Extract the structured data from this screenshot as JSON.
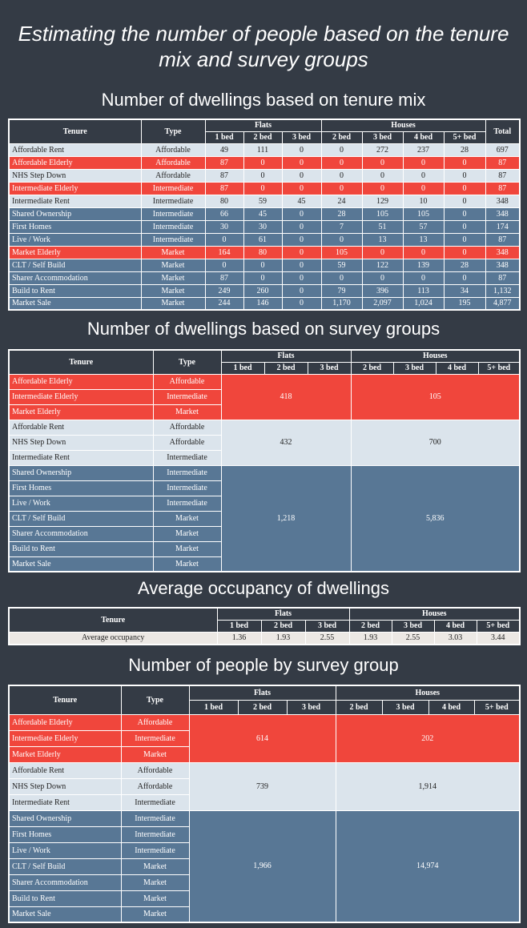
{
  "title": "Estimating the number of people based on the tenure mix and survey groups",
  "tables": [
    {
      "heading": "Number of dwellings based on tenure mix",
      "header": {
        "tenure": "Tenure",
        "type": "Type",
        "flats": "Flats",
        "houses": "Houses",
        "flat_beds": [
          "1 bed",
          "2 bed",
          "3 bed"
        ],
        "house_beds": [
          "2 bed",
          "3 bed",
          "4 bed",
          "5+ bed"
        ],
        "total": "Total"
      },
      "rows": [
        {
          "tenure": "Affordable Rent",
          "type": "Affordable",
          "color": "#dbe4ec",
          "values": [
            "49",
            "111",
            "0",
            "0",
            "272",
            "237",
            "28",
            "697"
          ]
        },
        {
          "tenure": "Affordable Elderly",
          "type": "Affordable",
          "color": "#f0463c",
          "values": [
            "87",
            "0",
            "0",
            "0",
            "0",
            "0",
            "0",
            "87"
          ]
        },
        {
          "tenure": "NHS Step Down",
          "type": "Affordable",
          "color": "#dbe4ec",
          "values": [
            "87",
            "0",
            "0",
            "0",
            "0",
            "0",
            "0",
            "87"
          ]
        },
        {
          "tenure": "Intermediate Elderly",
          "type": "Intermediate",
          "color": "#f0463c",
          "values": [
            "87",
            "0",
            "0",
            "0",
            "0",
            "0",
            "0",
            "87"
          ]
        },
        {
          "tenure": "Intermediate Rent",
          "type": "Intermediate",
          "color": "#dbe4ec",
          "values": [
            "80",
            "59",
            "45",
            "24",
            "129",
            "10",
            "0",
            "348"
          ]
        },
        {
          "tenure": "Shared Ownership",
          "type": "Intermediate",
          "color": "#587795",
          "values": [
            "66",
            "45",
            "0",
            "28",
            "105",
            "105",
            "0",
            "348"
          ]
        },
        {
          "tenure": "First Homes",
          "type": "Intermediate",
          "color": "#587795",
          "values": [
            "30",
            "30",
            "0",
            "7",
            "51",
            "57",
            "0",
            "174"
          ]
        },
        {
          "tenure": "Live / Work",
          "type": "Intermediate",
          "color": "#587795",
          "values": [
            "0",
            "61",
            "0",
            "0",
            "13",
            "13",
            "0",
            "87"
          ]
        },
        {
          "tenure": "Market Elderly",
          "type": "Market",
          "color": "#f0463c",
          "values": [
            "164",
            "80",
            "0",
            "105",
            "0",
            "0",
            "0",
            "348"
          ]
        },
        {
          "tenure": "CLT / Self Build",
          "type": "Market",
          "color": "#587795",
          "values": [
            "0",
            "0",
            "0",
            "59",
            "122",
            "139",
            "28",
            "348"
          ]
        },
        {
          "tenure": "Sharer Accommodation",
          "type": "Market",
          "color": "#587795",
          "values": [
            "87",
            "0",
            "0",
            "0",
            "0",
            "0",
            "0",
            "87"
          ]
        },
        {
          "tenure": "Build to Rent",
          "type": "Market",
          "color": "#587795",
          "values": [
            "249",
            "260",
            "0",
            "79",
            "396",
            "113",
            "34",
            "1,132"
          ]
        },
        {
          "tenure": "Market Sale",
          "type": "Market",
          "color": "#587795",
          "values": [
            "244",
            "146",
            "0",
            "1,170",
            "2,097",
            "1,024",
            "195",
            "4,877"
          ]
        }
      ]
    },
    {
      "heading": "Number of dwellings based on survey groups",
      "header": {
        "tenure": "Tenure",
        "type": "Type",
        "flats": "Flats",
        "houses": "Houses",
        "flat_beds": [
          "1 bed",
          "2 bed",
          "3 bed"
        ],
        "house_beds": [
          "2 bed",
          "3 bed",
          "4 bed",
          "5+ bed"
        ]
      },
      "groups": [
        {
          "color": "#f0463c",
          "flats": "418",
          "houses": "105",
          "rows": [
            {
              "tenure": "Affordable Elderly",
              "type": "Affordable"
            },
            {
              "tenure": "Intermediate Elderly",
              "type": "Intermediate"
            },
            {
              "tenure": "Market Elderly",
              "type": "Market"
            }
          ]
        },
        {
          "color": "#dbe4ec",
          "flats": "432",
          "houses": "700",
          "rows": [
            {
              "tenure": "Affordable Rent",
              "type": "Affordable"
            },
            {
              "tenure": "NHS Step Down",
              "type": "Affordable"
            },
            {
              "tenure": "Intermediate Rent",
              "type": "Intermediate"
            }
          ]
        },
        {
          "color": "#587795",
          "flats": "1,218",
          "houses": "5,836",
          "rows": [
            {
              "tenure": "Shared Ownership",
              "type": "Intermediate"
            },
            {
              "tenure": "First Homes",
              "type": "Intermediate"
            },
            {
              "tenure": "Live / Work",
              "type": "Intermediate"
            },
            {
              "tenure": "CLT / Self Build",
              "type": "Market"
            },
            {
              "tenure": "Sharer Accommodation",
              "type": "Market"
            },
            {
              "tenure": "Build to Rent",
              "type": "Market"
            },
            {
              "tenure": "Market Sale",
              "type": "Market"
            }
          ]
        }
      ]
    },
    {
      "heading": "Average occupancy of dwellings",
      "header": {
        "tenure": "Tenure",
        "flats": "Flats",
        "houses": "Houses",
        "flat_beds": [
          "1 bed",
          "2 bed",
          "3 bed"
        ],
        "house_beds": [
          "2 bed",
          "3 bed",
          "4 bed",
          "5+ bed"
        ]
      },
      "rows": [
        {
          "tenure": "Average occupancy",
          "color": "#ece8e4",
          "values": [
            "1.36",
            "1.93",
            "2.55",
            "1.93",
            "2.55",
            "3.03",
            "3.44"
          ]
        }
      ]
    },
    {
      "heading": "Number of people by survey group",
      "header": {
        "tenure": "Tenure",
        "type": "Type",
        "flats": "Flats",
        "houses": "Houses",
        "flat_beds": [
          "1 bed",
          "2 bed",
          "3 bed"
        ],
        "house_beds": [
          "2 bed",
          "3 bed",
          "4 bed",
          "5+ bed"
        ]
      },
      "groups": [
        {
          "color": "#f0463c",
          "flats": "614",
          "houses": "202",
          "rows": [
            {
              "tenure": "Affordable Elderly",
              "type": "Affordable"
            },
            {
              "tenure": "Intermediate Elderly",
              "type": "Intermediate"
            },
            {
              "tenure": "Market Elderly",
              "type": "Market"
            }
          ]
        },
        {
          "color": "#dbe4ec",
          "flats": "739",
          "houses": "1,914",
          "rows": [
            {
              "tenure": "Affordable Rent",
              "type": "Affordable"
            },
            {
              "tenure": "NHS Step Down",
              "type": "Affordable"
            },
            {
              "tenure": "Intermediate Rent",
              "type": "Intermediate"
            }
          ]
        },
        {
          "color": "#587795",
          "flats": "1,966",
          "houses": "14,974",
          "rows": [
            {
              "tenure": "Shared Ownership",
              "type": "Intermediate"
            },
            {
              "tenure": "First Homes",
              "type": "Intermediate"
            },
            {
              "tenure": "Live / Work",
              "type": "Intermediate"
            },
            {
              "tenure": "CLT / Self Build",
              "type": "Market"
            },
            {
              "tenure": "Sharer Accommodation",
              "type": "Market"
            },
            {
              "tenure": "Build to Rent",
              "type": "Market"
            },
            {
              "tenure": "Market Sale",
              "type": "Market"
            }
          ]
        }
      ]
    }
  ]
}
